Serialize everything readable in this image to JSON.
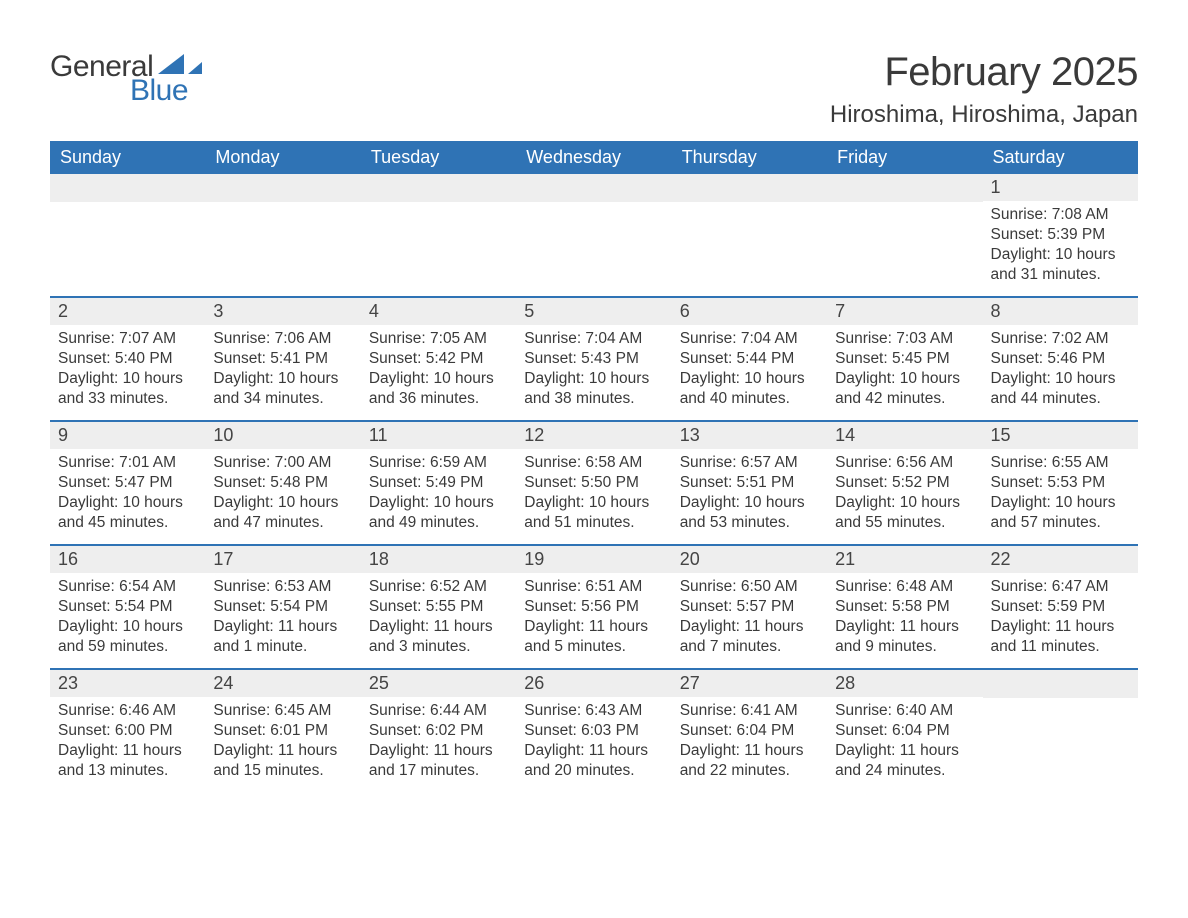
{
  "logo": {
    "main": "General",
    "sub": "Blue"
  },
  "title": "February 2025",
  "location": "Hiroshima, Hiroshima, Japan",
  "colors": {
    "header_bg": "#2f73b5",
    "header_text": "#ffffff",
    "daynum_bg": "#eeeeee",
    "week_divider": "#2f73b5",
    "body_text": "#3a3a3a",
    "logo_sub": "#2f73b5"
  },
  "dayheaders": [
    "Sunday",
    "Monday",
    "Tuesday",
    "Wednesday",
    "Thursday",
    "Friday",
    "Saturday"
  ],
  "weeks": [
    [
      null,
      null,
      null,
      null,
      null,
      null,
      {
        "n": "1",
        "sunrise": "Sunrise: 7:08 AM",
        "sunset": "Sunset: 5:39 PM",
        "daylight": "Daylight: 10 hours and 31 minutes."
      }
    ],
    [
      {
        "n": "2",
        "sunrise": "Sunrise: 7:07 AM",
        "sunset": "Sunset: 5:40 PM",
        "daylight": "Daylight: 10 hours and 33 minutes."
      },
      {
        "n": "3",
        "sunrise": "Sunrise: 7:06 AM",
        "sunset": "Sunset: 5:41 PM",
        "daylight": "Daylight: 10 hours and 34 minutes."
      },
      {
        "n": "4",
        "sunrise": "Sunrise: 7:05 AM",
        "sunset": "Sunset: 5:42 PM",
        "daylight": "Daylight: 10 hours and 36 minutes."
      },
      {
        "n": "5",
        "sunrise": "Sunrise: 7:04 AM",
        "sunset": "Sunset: 5:43 PM",
        "daylight": "Daylight: 10 hours and 38 minutes."
      },
      {
        "n": "6",
        "sunrise": "Sunrise: 7:04 AM",
        "sunset": "Sunset: 5:44 PM",
        "daylight": "Daylight: 10 hours and 40 minutes."
      },
      {
        "n": "7",
        "sunrise": "Sunrise: 7:03 AM",
        "sunset": "Sunset: 5:45 PM",
        "daylight": "Daylight: 10 hours and 42 minutes."
      },
      {
        "n": "8",
        "sunrise": "Sunrise: 7:02 AM",
        "sunset": "Sunset: 5:46 PM",
        "daylight": "Daylight: 10 hours and 44 minutes."
      }
    ],
    [
      {
        "n": "9",
        "sunrise": "Sunrise: 7:01 AM",
        "sunset": "Sunset: 5:47 PM",
        "daylight": "Daylight: 10 hours and 45 minutes."
      },
      {
        "n": "10",
        "sunrise": "Sunrise: 7:00 AM",
        "sunset": "Sunset: 5:48 PM",
        "daylight": "Daylight: 10 hours and 47 minutes."
      },
      {
        "n": "11",
        "sunrise": "Sunrise: 6:59 AM",
        "sunset": "Sunset: 5:49 PM",
        "daylight": "Daylight: 10 hours and 49 minutes."
      },
      {
        "n": "12",
        "sunrise": "Sunrise: 6:58 AM",
        "sunset": "Sunset: 5:50 PM",
        "daylight": "Daylight: 10 hours and 51 minutes."
      },
      {
        "n": "13",
        "sunrise": "Sunrise: 6:57 AM",
        "sunset": "Sunset: 5:51 PM",
        "daylight": "Daylight: 10 hours and 53 minutes."
      },
      {
        "n": "14",
        "sunrise": "Sunrise: 6:56 AM",
        "sunset": "Sunset: 5:52 PM",
        "daylight": "Daylight: 10 hours and 55 minutes."
      },
      {
        "n": "15",
        "sunrise": "Sunrise: 6:55 AM",
        "sunset": "Sunset: 5:53 PM",
        "daylight": "Daylight: 10 hours and 57 minutes."
      }
    ],
    [
      {
        "n": "16",
        "sunrise": "Sunrise: 6:54 AM",
        "sunset": "Sunset: 5:54 PM",
        "daylight": "Daylight: 10 hours and 59 minutes."
      },
      {
        "n": "17",
        "sunrise": "Sunrise: 6:53 AM",
        "sunset": "Sunset: 5:54 PM",
        "daylight": "Daylight: 11 hours and 1 minute."
      },
      {
        "n": "18",
        "sunrise": "Sunrise: 6:52 AM",
        "sunset": "Sunset: 5:55 PM",
        "daylight": "Daylight: 11 hours and 3 minutes."
      },
      {
        "n": "19",
        "sunrise": "Sunrise: 6:51 AM",
        "sunset": "Sunset: 5:56 PM",
        "daylight": "Daylight: 11 hours and 5 minutes."
      },
      {
        "n": "20",
        "sunrise": "Sunrise: 6:50 AM",
        "sunset": "Sunset: 5:57 PM",
        "daylight": "Daylight: 11 hours and 7 minutes."
      },
      {
        "n": "21",
        "sunrise": "Sunrise: 6:48 AM",
        "sunset": "Sunset: 5:58 PM",
        "daylight": "Daylight: 11 hours and 9 minutes."
      },
      {
        "n": "22",
        "sunrise": "Sunrise: 6:47 AM",
        "sunset": "Sunset: 5:59 PM",
        "daylight": "Daylight: 11 hours and 11 minutes."
      }
    ],
    [
      {
        "n": "23",
        "sunrise": "Sunrise: 6:46 AM",
        "sunset": "Sunset: 6:00 PM",
        "daylight": "Daylight: 11 hours and 13 minutes."
      },
      {
        "n": "24",
        "sunrise": "Sunrise: 6:45 AM",
        "sunset": "Sunset: 6:01 PM",
        "daylight": "Daylight: 11 hours and 15 minutes."
      },
      {
        "n": "25",
        "sunrise": "Sunrise: 6:44 AM",
        "sunset": "Sunset: 6:02 PM",
        "daylight": "Daylight: 11 hours and 17 minutes."
      },
      {
        "n": "26",
        "sunrise": "Sunrise: 6:43 AM",
        "sunset": "Sunset: 6:03 PM",
        "daylight": "Daylight: 11 hours and 20 minutes."
      },
      {
        "n": "27",
        "sunrise": "Sunrise: 6:41 AM",
        "sunset": "Sunset: 6:04 PM",
        "daylight": "Daylight: 11 hours and 22 minutes."
      },
      {
        "n": "28",
        "sunrise": "Sunrise: 6:40 AM",
        "sunset": "Sunset: 6:04 PM",
        "daylight": "Daylight: 11 hours and 24 minutes."
      },
      null
    ]
  ]
}
